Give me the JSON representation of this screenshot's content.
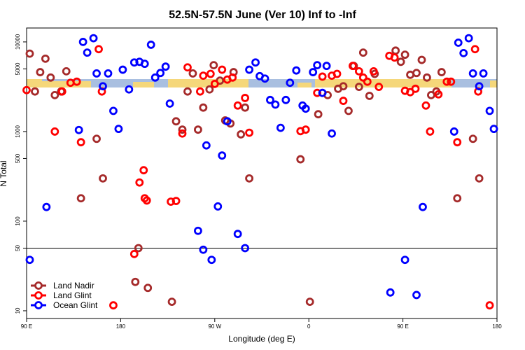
{
  "chart_data": {
    "type": "scatter",
    "title": "52.5N-57.5N June (Ver 10)   Inf to -Inf",
    "x_label": "Longitude (deg E)",
    "y_label": "N Total",
    "log_y": true,
    "xlim": [
      90,
      540
    ],
    "ylim": [
      8.2,
      14300
    ],
    "xticks": [
      {
        "value": 90,
        "label": "90 E"
      },
      {
        "value": 180,
        "label": "180"
      },
      {
        "value": 270,
        "label": "90 W"
      },
      {
        "value": 360,
        "label": "0"
      },
      {
        "value": 450,
        "label": "90 E"
      },
      {
        "value": 540,
        "label": "180"
      }
    ],
    "yticks": [
      10,
      50,
      100,
      500,
      1000,
      5000,
      10000
    ],
    "hline": 50,
    "legend": "lower left",
    "series": [
      {
        "name": "Land Nadir",
        "color": "#a52a2a",
        "x": [
          93,
          98,
          103,
          108,
          113,
          117,
          123,
          128,
          142,
          157,
          163,
          194,
          197,
          206,
          229,
          233,
          239,
          244,
          249,
          254,
          259,
          265,
          269,
          275,
          280,
          285,
          288,
          295,
          299,
          303,
          361,
          352,
          369,
          378,
          388,
          393,
          398,
          403,
          408,
          412,
          418,
          423,
          443,
          448,
          452,
          457,
          463,
          468,
          473,
          477,
          482,
          487,
          502,
          517,
          523
        ],
        "values": [
          7400,
          2800,
          4600,
          6500,
          4000,
          2550,
          2800,
          4700,
          180,
          830,
          300,
          21,
          50,
          18,
          12.6,
          1300,
          1050,
          2800,
          4450,
          1050,
          1850,
          2950,
          5500,
          3700,
          1330,
          1230,
          4600,
          930,
          1850,
          300,
          12.6,
          490,
          1560,
          2550,
          3000,
          3200,
          1700,
          5400,
          3150,
          7600,
          2500,
          4400,
          8000,
          6000,
          7200,
          4300,
          4500,
          6300,
          4000,
          2550,
          2800,
          4600,
          180,
          830,
          300
        ]
      },
      {
        "name": "Land Glint",
        "color": "#ff0000",
        "x": [
          90,
          117,
          124,
          132,
          138,
          142,
          159,
          162,
          173,
          193,
          198,
          202,
          203,
          205,
          228,
          233,
          239,
          244,
          256,
          259,
          266,
          270,
          277,
          282,
          287,
          292,
          299,
          303,
          352,
          357,
          368,
          373,
          382,
          387,
          393,
          402,
          408,
          412,
          416,
          422,
          427,
          437,
          442,
          452,
          457,
          462,
          472,
          476,
          484,
          492,
          496,
          502,
          519,
          522,
          533
        ],
        "values": [
          2900,
          1000,
          2800,
          3500,
          3600,
          760,
          8300,
          2800,
          11.5,
          43,
          270,
          370,
          180,
          170,
          165,
          168,
          950,
          5200,
          2800,
          4200,
          4400,
          3400,
          4900,
          3800,
          4000,
          1950,
          2370,
          970,
          1010,
          1050,
          2700,
          4100,
          4200,
          4400,
          2200,
          5400,
          4700,
          4000,
          3600,
          4700,
          3150,
          7000,
          6700,
          2850,
          2750,
          3000,
          1950,
          1000,
          2600,
          3600,
          3600,
          760,
          8300,
          2800,
          11.5
        ]
      },
      {
        "name": "Ocean Glint",
        "color": "#0000ff",
        "x": [
          93,
          109,
          140,
          144,
          148,
          154,
          157,
          163,
          168,
          173,
          178,
          182,
          188,
          193,
          198,
          203,
          209,
          213,
          218,
          223,
          227,
          254,
          259,
          262,
          267,
          273,
          277,
          282,
          292,
          299,
          303,
          309,
          313,
          318,
          323,
          328,
          333,
          338,
          342,
          348,
          354,
          357,
          364,
          368,
          373,
          377,
          382,
          438,
          452,
          463,
          469,
          499,
          503,
          508,
          513,
          517,
          523,
          527,
          533,
          537
        ],
        "values": [
          37,
          144,
          1040,
          10000,
          7600,
          11000,
          4450,
          3200,
          4450,
          1700,
          1070,
          4900,
          2950,
          5900,
          6000,
          5700,
          9300,
          4000,
          4500,
          5300,
          2050,
          78,
          48,
          700,
          37,
          146,
          540,
          1300,
          72,
          50,
          4900,
          5900,
          4150,
          3900,
          2250,
          2000,
          1100,
          2250,
          3500,
          4800,
          1950,
          1800,
          4600,
          5500,
          2700,
          5400,
          950,
          16,
          37,
          15,
          144,
          1000,
          9800,
          7500,
          11000,
          4450,
          3200,
          4450,
          1700,
          1070
        ]
      }
    ]
  }
}
